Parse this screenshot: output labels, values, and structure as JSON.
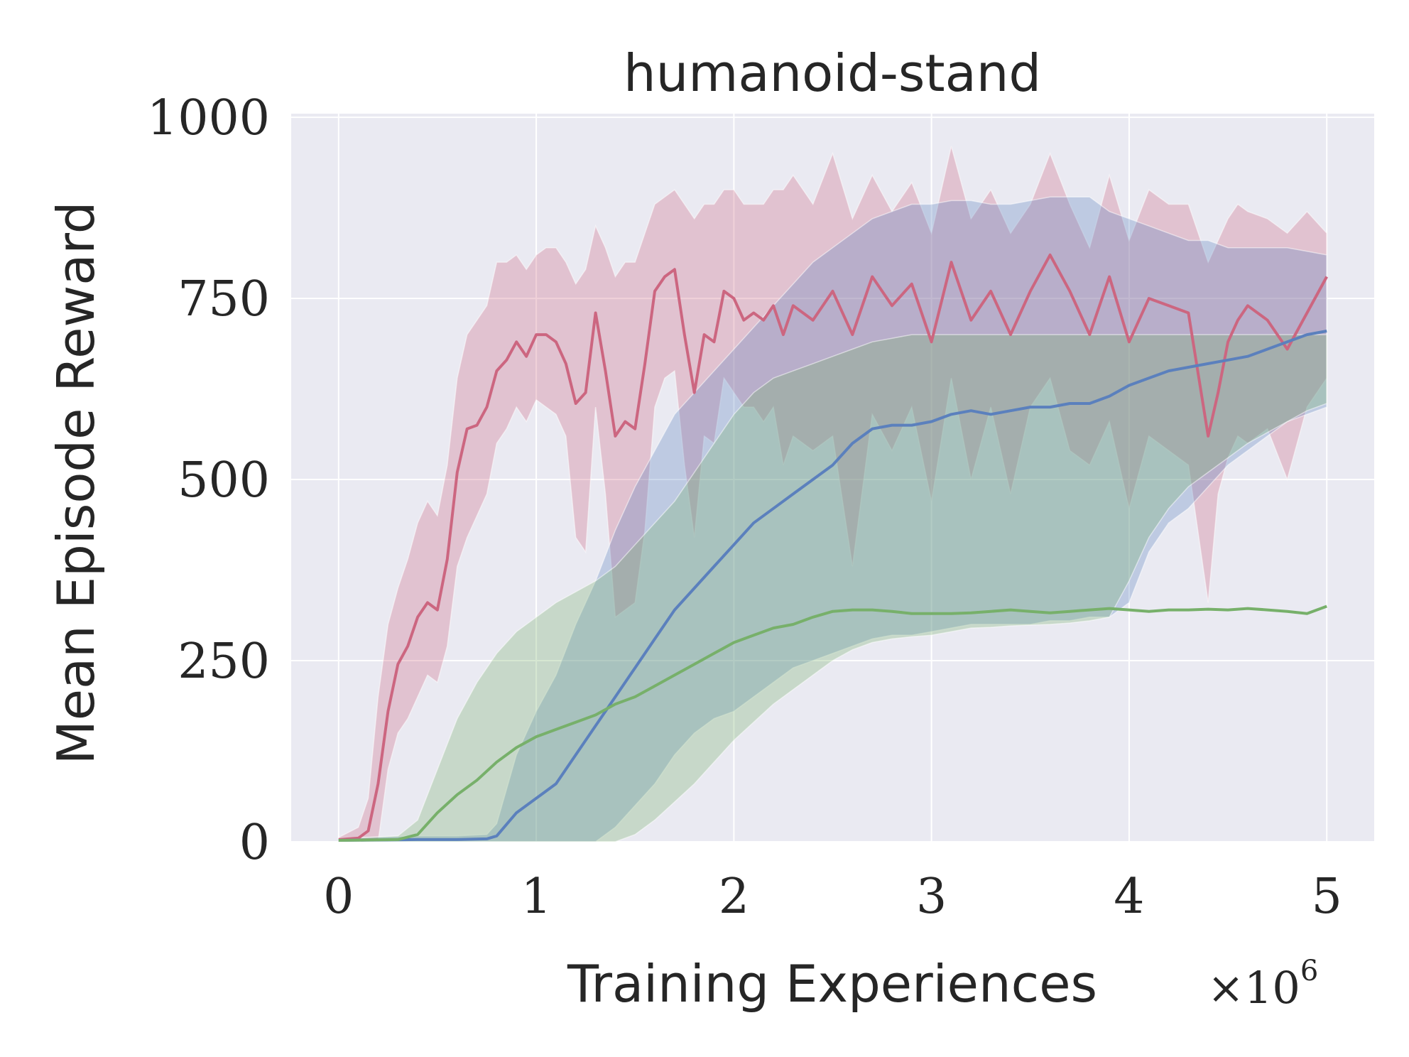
{
  "chart_data": {
    "type": "line",
    "title": "humanoid-stand",
    "xlabel": "Training Experiences",
    "ylabel": "Mean Episode Reward",
    "x_multiplier_label": "×10",
    "x_multiplier_exponent": "6",
    "xlim": [
      -0.24,
      5.24
    ],
    "ylim": [
      0,
      1005
    ],
    "xticks": [
      0,
      1,
      2,
      3,
      4,
      5
    ],
    "xtick_labels": [
      "0",
      "1",
      "2",
      "3",
      "4",
      "5"
    ],
    "yticks": [
      0,
      250,
      500,
      750,
      1000
    ],
    "ytick_labels": [
      "0",
      "250",
      "500",
      "750",
      "1000"
    ],
    "grid": true,
    "background": "#eaeaf2",
    "series": [
      {
        "color": "#cc6680",
        "x": [
          0,
          0.1,
          0.15,
          0.2,
          0.25,
          0.3,
          0.35,
          0.4,
          0.45,
          0.5,
          0.55,
          0.6,
          0.65,
          0.7,
          0.75,
          0.8,
          0.85,
          0.9,
          0.95,
          1.0,
          1.05,
          1.1,
          1.15,
          1.2,
          1.25,
          1.3,
          1.35,
          1.4,
          1.45,
          1.5,
          1.55,
          1.6,
          1.65,
          1.7,
          1.75,
          1.8,
          1.85,
          1.9,
          1.95,
          2.0,
          2.05,
          2.1,
          2.15,
          2.2,
          2.25,
          2.3,
          2.4,
          2.5,
          2.6,
          2.7,
          2.8,
          2.9,
          3.0,
          3.1,
          3.2,
          3.3,
          3.4,
          3.5,
          3.6,
          3.7,
          3.8,
          3.9,
          4.0,
          4.1,
          4.2,
          4.3,
          4.4,
          4.45,
          4.5,
          4.55,
          4.6,
          4.7,
          4.8,
          4.9,
          5.0
        ],
        "values": [
          3,
          5,
          15,
          80,
          180,
          245,
          270,
          310,
          330,
          320,
          390,
          510,
          570,
          575,
          600,
          650,
          665,
          690,
          670,
          700,
          700,
          690,
          660,
          605,
          620,
          730,
          650,
          560,
          580,
          570,
          660,
          760,
          780,
          790,
          700,
          620,
          700,
          690,
          760,
          750,
          720,
          730,
          720,
          740,
          700,
          740,
          720,
          760,
          700,
          780,
          740,
          770,
          690,
          800,
          720,
          760,
          700,
          760,
          810,
          760,
          700,
          780,
          690,
          750,
          740,
          730,
          560,
          620,
          690,
          720,
          740,
          720,
          680,
          730,
          780
        ],
        "band_lower": [
          0,
          0,
          0,
          0,
          100,
          150,
          170,
          200,
          230,
          220,
          270,
          380,
          420,
          450,
          480,
          550,
          570,
          600,
          580,
          610,
          600,
          590,
          560,
          420,
          400,
          600,
          480,
          310,
          320,
          330,
          430,
          600,
          640,
          650,
          520,
          420,
          560,
          550,
          640,
          620,
          600,
          600,
          580,
          600,
          520,
          560,
          540,
          560,
          380,
          590,
          540,
          600,
          470,
          640,
          500,
          600,
          480,
          600,
          640,
          540,
          520,
          580,
          460,
          560,
          540,
          520,
          330,
          480,
          530,
          560,
          550,
          570,
          500,
          600,
          640
        ],
        "band_upper": [
          6,
          20,
          60,
          200,
          300,
          350,
          390,
          440,
          470,
          450,
          520,
          640,
          700,
          720,
          740,
          800,
          800,
          810,
          790,
          810,
          820,
          820,
          800,
          770,
          790,
          850,
          820,
          780,
          800,
          800,
          840,
          880,
          890,
          900,
          880,
          860,
          880,
          880,
          900,
          900,
          880,
          880,
          880,
          900,
          900,
          920,
          880,
          950,
          860,
          920,
          870,
          910,
          840,
          960,
          860,
          900,
          840,
          880,
          950,
          880,
          820,
          920,
          830,
          900,
          880,
          880,
          800,
          830,
          860,
          880,
          870,
          860,
          840,
          870,
          840
        ]
      },
      {
        "color": "#5b80bd",
        "x": [
          0,
          0.4,
          0.6,
          0.75,
          0.8,
          0.9,
          1.0,
          1.1,
          1.2,
          1.3,
          1.4,
          1.5,
          1.6,
          1.7,
          1.8,
          1.9,
          2.0,
          2.1,
          2.2,
          2.3,
          2.4,
          2.5,
          2.6,
          2.7,
          2.8,
          2.9,
          3.0,
          3.1,
          3.2,
          3.3,
          3.4,
          3.5,
          3.6,
          3.7,
          3.8,
          3.9,
          4.0,
          4.1,
          4.2,
          4.3,
          4.4,
          4.5,
          4.6,
          4.7,
          4.8,
          4.9,
          5.0
        ],
        "values": [
          2,
          3,
          3,
          4,
          8,
          40,
          60,
          80,
          120,
          160,
          200,
          240,
          280,
          320,
          350,
          380,
          410,
          440,
          460,
          480,
          500,
          520,
          550,
          570,
          575,
          575,
          580,
          590,
          595,
          590,
          595,
          600,
          600,
          605,
          605,
          615,
          630,
          640,
          650,
          655,
          660,
          665,
          670,
          680,
          690,
          700,
          705
        ],
        "band_lower": [
          0,
          0,
          0,
          0,
          0,
          0,
          0,
          0,
          0,
          0,
          20,
          50,
          80,
          120,
          150,
          170,
          180,
          200,
          220,
          240,
          250,
          260,
          270,
          280,
          285,
          285,
          290,
          295,
          300,
          300,
          300,
          300,
          305,
          305,
          310,
          310,
          330,
          400,
          440,
          460,
          490,
          520,
          540,
          560,
          580,
          590,
          600
        ],
        "band_upper": [
          5,
          8,
          8,
          10,
          25,
          120,
          180,
          230,
          300,
          360,
          430,
          490,
          540,
          590,
          620,
          650,
          680,
          710,
          740,
          770,
          800,
          820,
          840,
          860,
          870,
          880,
          880,
          885,
          885,
          880,
          880,
          885,
          890,
          890,
          890,
          870,
          860,
          850,
          840,
          830,
          830,
          820,
          820,
          820,
          820,
          815,
          810
        ]
      },
      {
        "color": "#77b06a",
        "x": [
          0,
          0.3,
          0.4,
          0.5,
          0.6,
          0.7,
          0.8,
          0.9,
          1.0,
          1.1,
          1.2,
          1.3,
          1.4,
          1.5,
          1.6,
          1.7,
          1.8,
          1.9,
          2.0,
          2.1,
          2.2,
          2.3,
          2.4,
          2.5,
          2.6,
          2.7,
          2.8,
          2.9,
          3.0,
          3.1,
          3.2,
          3.3,
          3.4,
          3.5,
          3.6,
          3.7,
          3.8,
          3.9,
          4.0,
          4.1,
          4.2,
          4.3,
          4.4,
          4.5,
          4.6,
          4.7,
          4.8,
          4.9,
          5.0
        ],
        "values": [
          2,
          3,
          10,
          40,
          65,
          85,
          110,
          130,
          145,
          155,
          165,
          175,
          190,
          200,
          215,
          230,
          245,
          260,
          275,
          285,
          295,
          300,
          310,
          318,
          320,
          320,
          318,
          315,
          315,
          315,
          316,
          318,
          320,
          318,
          316,
          318,
          320,
          322,
          320,
          318,
          320,
          320,
          321,
          320,
          322,
          320,
          318,
          315,
          325
        ],
        "band_lower": [
          0,
          0,
          0,
          0,
          0,
          0,
          0,
          0,
          0,
          0,
          0,
          0,
          0,
          10,
          30,
          55,
          80,
          110,
          140,
          165,
          190,
          210,
          230,
          250,
          265,
          275,
          280,
          283,
          285,
          290,
          295,
          296,
          298,
          299,
          300,
          302,
          305,
          310,
          360,
          420,
          460,
          490,
          510,
          530,
          550,
          565,
          580,
          595,
          605
        ],
        "band_upper": [
          4,
          8,
          30,
          100,
          170,
          220,
          260,
          290,
          310,
          330,
          345,
          360,
          380,
          410,
          440,
          470,
          510,
          550,
          590,
          620,
          640,
          650,
          660,
          670,
          680,
          690,
          695,
          700,
          700,
          700,
          700,
          700,
          700,
          700,
          700,
          700,
          700,
          700,
          700,
          700,
          700,
          700,
          700,
          700,
          700,
          700,
          700,
          700,
          700
        ]
      }
    ]
  }
}
